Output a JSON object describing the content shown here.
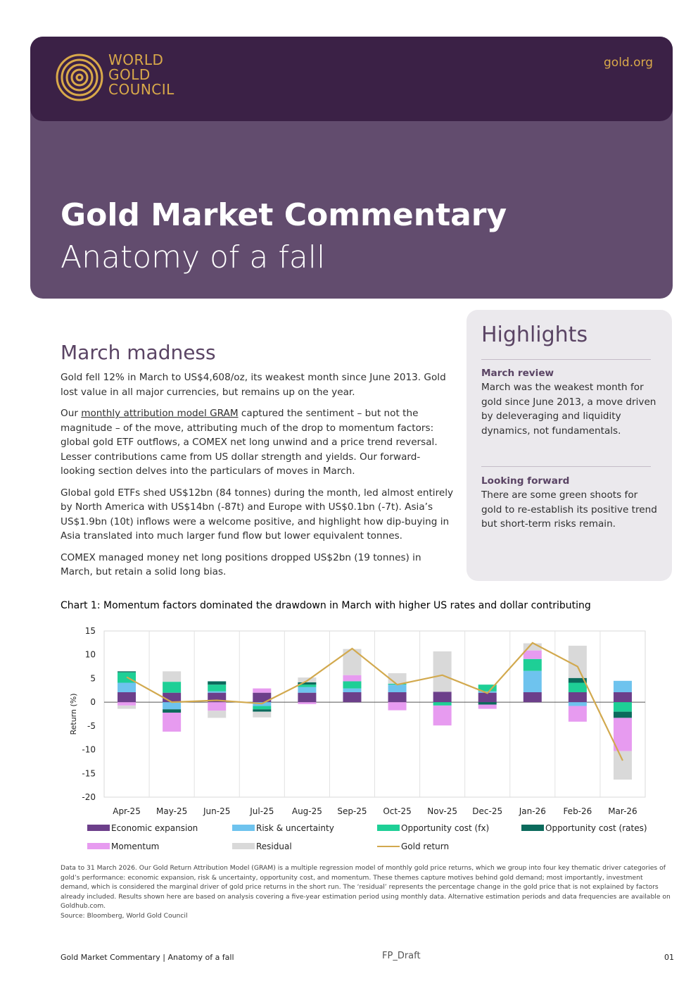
{
  "header": {
    "logo_lines": [
      "WORLD",
      "GOLD",
      "COUNCIL"
    ],
    "site": "gold.org",
    "title": "Gold Market Commentary",
    "subtitle": "Anatomy of a fall"
  },
  "colors": {
    "header_dark": "#3b2146",
    "header_purple": "#624c6e",
    "gold": "#d9a94a"
  },
  "article": {
    "heading": "March madness",
    "p1": "Gold fell 12% in March to US$4,608/oz, its weakest month since June 2013. Gold lost value in all major currencies, but remains up on the year.",
    "p2_pre": "Our ",
    "p2_link": "monthly attribution model GRAM",
    "p2_post": " captured the sentiment – but not the magnitude – of the move, attributing much of the drop to momentum factors: global gold ETF outflows, a COMEX net long unwind and a price trend reversal. Lesser contributions came from US dollar strength and yields. Our forward-looking section delves into the particulars of moves in March.",
    "p3": "Global gold ETFs shed US$12bn (84 tonnes) during the month, led almost entirely by North America with US$14bn (-87t) and Europe with US$0.1bn (-7t). Asia’s US$1.9bn (10t) inflows were a welcome positive, and highlight how dip-buying in Asia translated into much larger fund flow but lower equivalent tonnes.",
    "p4": "COMEX managed money net long positions dropped US$2bn (19 tonnes) in March, but retain a solid long bias."
  },
  "highlights": {
    "title": "Highlights",
    "items": [
      {
        "heading": "March review",
        "text": "March was the weakest month for gold since June 2013, a move driven by deleveraging and liquidity dynamics, not fundamentals."
      },
      {
        "heading": "Looking forward",
        "text": "There are some green shoots for gold to re-establish its positive trend but short-term risks remain."
      }
    ]
  },
  "chart_title": "Chart 1: Momentum factors dominated the drawdown in March with higher US rates and dollar contributing",
  "chart_data": {
    "type": "bar",
    "stacked": true,
    "categories": [
      "Apr-25",
      "May-25",
      "Jun-25",
      "Jul-25",
      "Aug-25",
      "Sep-25",
      "Oct-25",
      "Nov-25",
      "Dec-25",
      "Jan-26",
      "Feb-26",
      "Mar-26"
    ],
    "ylabel": "Return (%)",
    "ylim": [
      -20,
      15
    ],
    "yticks": [
      15,
      10,
      5,
      0,
      -5,
      -10,
      -15,
      -20
    ],
    "grid": true,
    "legend_position": "bottom",
    "series": [
      {
        "name": "Economic expansion",
        "color": "#6c3f8a",
        "values": [
          2.1,
          2.0,
          2.0,
          2.0,
          2.0,
          2.1,
          2.1,
          2.2,
          2.0,
          2.1,
          2.1,
          2.1
        ]
      },
      {
        "name": "Risk & uncertainty",
        "color": "#6ec3ee",
        "values": [
          2.0,
          -1.5,
          0.3,
          -0.8,
          1.2,
          0.8,
          1.6,
          0.0,
          0.3,
          4.5,
          -0.8,
          2.4
        ]
      },
      {
        "name": "Opportunity cost (fx)",
        "color": "#1ecf96",
        "values": [
          2.2,
          2.3,
          1.4,
          -0.7,
          0.5,
          1.5,
          0.2,
          -0.7,
          1.4,
          2.5,
          2.0,
          -2.0
        ]
      },
      {
        "name": "Opportunity cost (rates)",
        "color": "#0b6a5c",
        "values": [
          0.2,
          -0.7,
          0.7,
          -0.5,
          0.5,
          0.0,
          0.0,
          0.0,
          -0.5,
          0.0,
          1.0,
          -1.3
        ]
      },
      {
        "name": "Momentum",
        "color": "#e79bf0",
        "values": [
          -0.7,
          -4.0,
          -1.8,
          0.9,
          -0.4,
          1.3,
          -1.7,
          -4.2,
          -0.9,
          1.8,
          -3.3,
          -7.0
        ]
      },
      {
        "name": "Residual",
        "color": "#d9d9d9",
        "values": [
          -0.7,
          2.2,
          -1.5,
          -1.2,
          1.0,
          5.5,
          2.2,
          8.5,
          0.0,
          1.5,
          6.8,
          -6.0
        ]
      }
    ],
    "line": {
      "name": "Gold return",
      "color": "#d2a94e",
      "values": [
        5.3,
        0.0,
        0.4,
        -0.3,
        4.5,
        11.3,
        3.7,
        5.7,
        1.9,
        12.5,
        7.5,
        -12.3
      ]
    }
  },
  "notes": [
    "Data to 31 March 2026. Our Gold Return Attribution Model (GRAM) is a multiple regression model of monthly gold price returns, which we group into four key thematic driver categories of gold’s performance: economic expansion, risk & uncertainty, opportunity cost, and momentum. These themes capture motives behind gold demand; most importantly, investment demand, which is considered the marginal driver of gold price returns in the short run. The ‘residual’ represents the percentage change in the gold price that is not explained by factors already included. Results shown here are based on analysis covering a five-year estimation period using monthly data. Alternative estimation periods and data frequencies are available on Goldhub.com.",
    "Source: Bloomberg, World Gold Council"
  ],
  "footer": {
    "left": "Gold Market Commentary | Anatomy of a fall",
    "center": "FP_Draft",
    "page": "01"
  }
}
